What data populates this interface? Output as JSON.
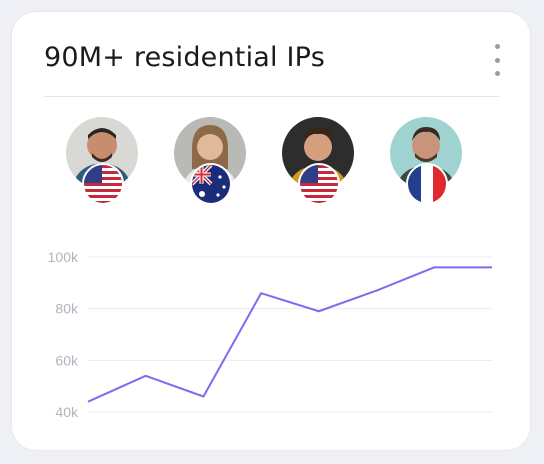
{
  "card": {
    "title": "90M+ residential IPs",
    "menu_icon": "more-vertical-icon"
  },
  "avatars": [
    {
      "flag": "US",
      "bg": "#d8d8d4",
      "shirt": "#2d5d7c"
    },
    {
      "flag": "AU",
      "bg": "#b9b9b6",
      "shirt": "#e8e8e8"
    },
    {
      "flag": "US",
      "bg": "#2c2d2c",
      "shirt": "#d49a22"
    },
    {
      "flag": "FR",
      "bg": "#9fd3d2",
      "shirt": "#3a4a3e"
    }
  ],
  "chart_data": {
    "type": "line",
    "x": [
      0,
      1,
      2,
      3,
      4,
      5,
      6,
      7
    ],
    "values": [
      44,
      54,
      46,
      86,
      79,
      87,
      96,
      96
    ],
    "ylim": [
      40,
      100
    ],
    "ytick_labels": [
      "100k",
      "80k",
      "60k",
      "40k"
    ],
    "yticks": [
      100,
      80,
      60,
      40
    ],
    "line_color": "#7c6cf0",
    "grid": true
  }
}
